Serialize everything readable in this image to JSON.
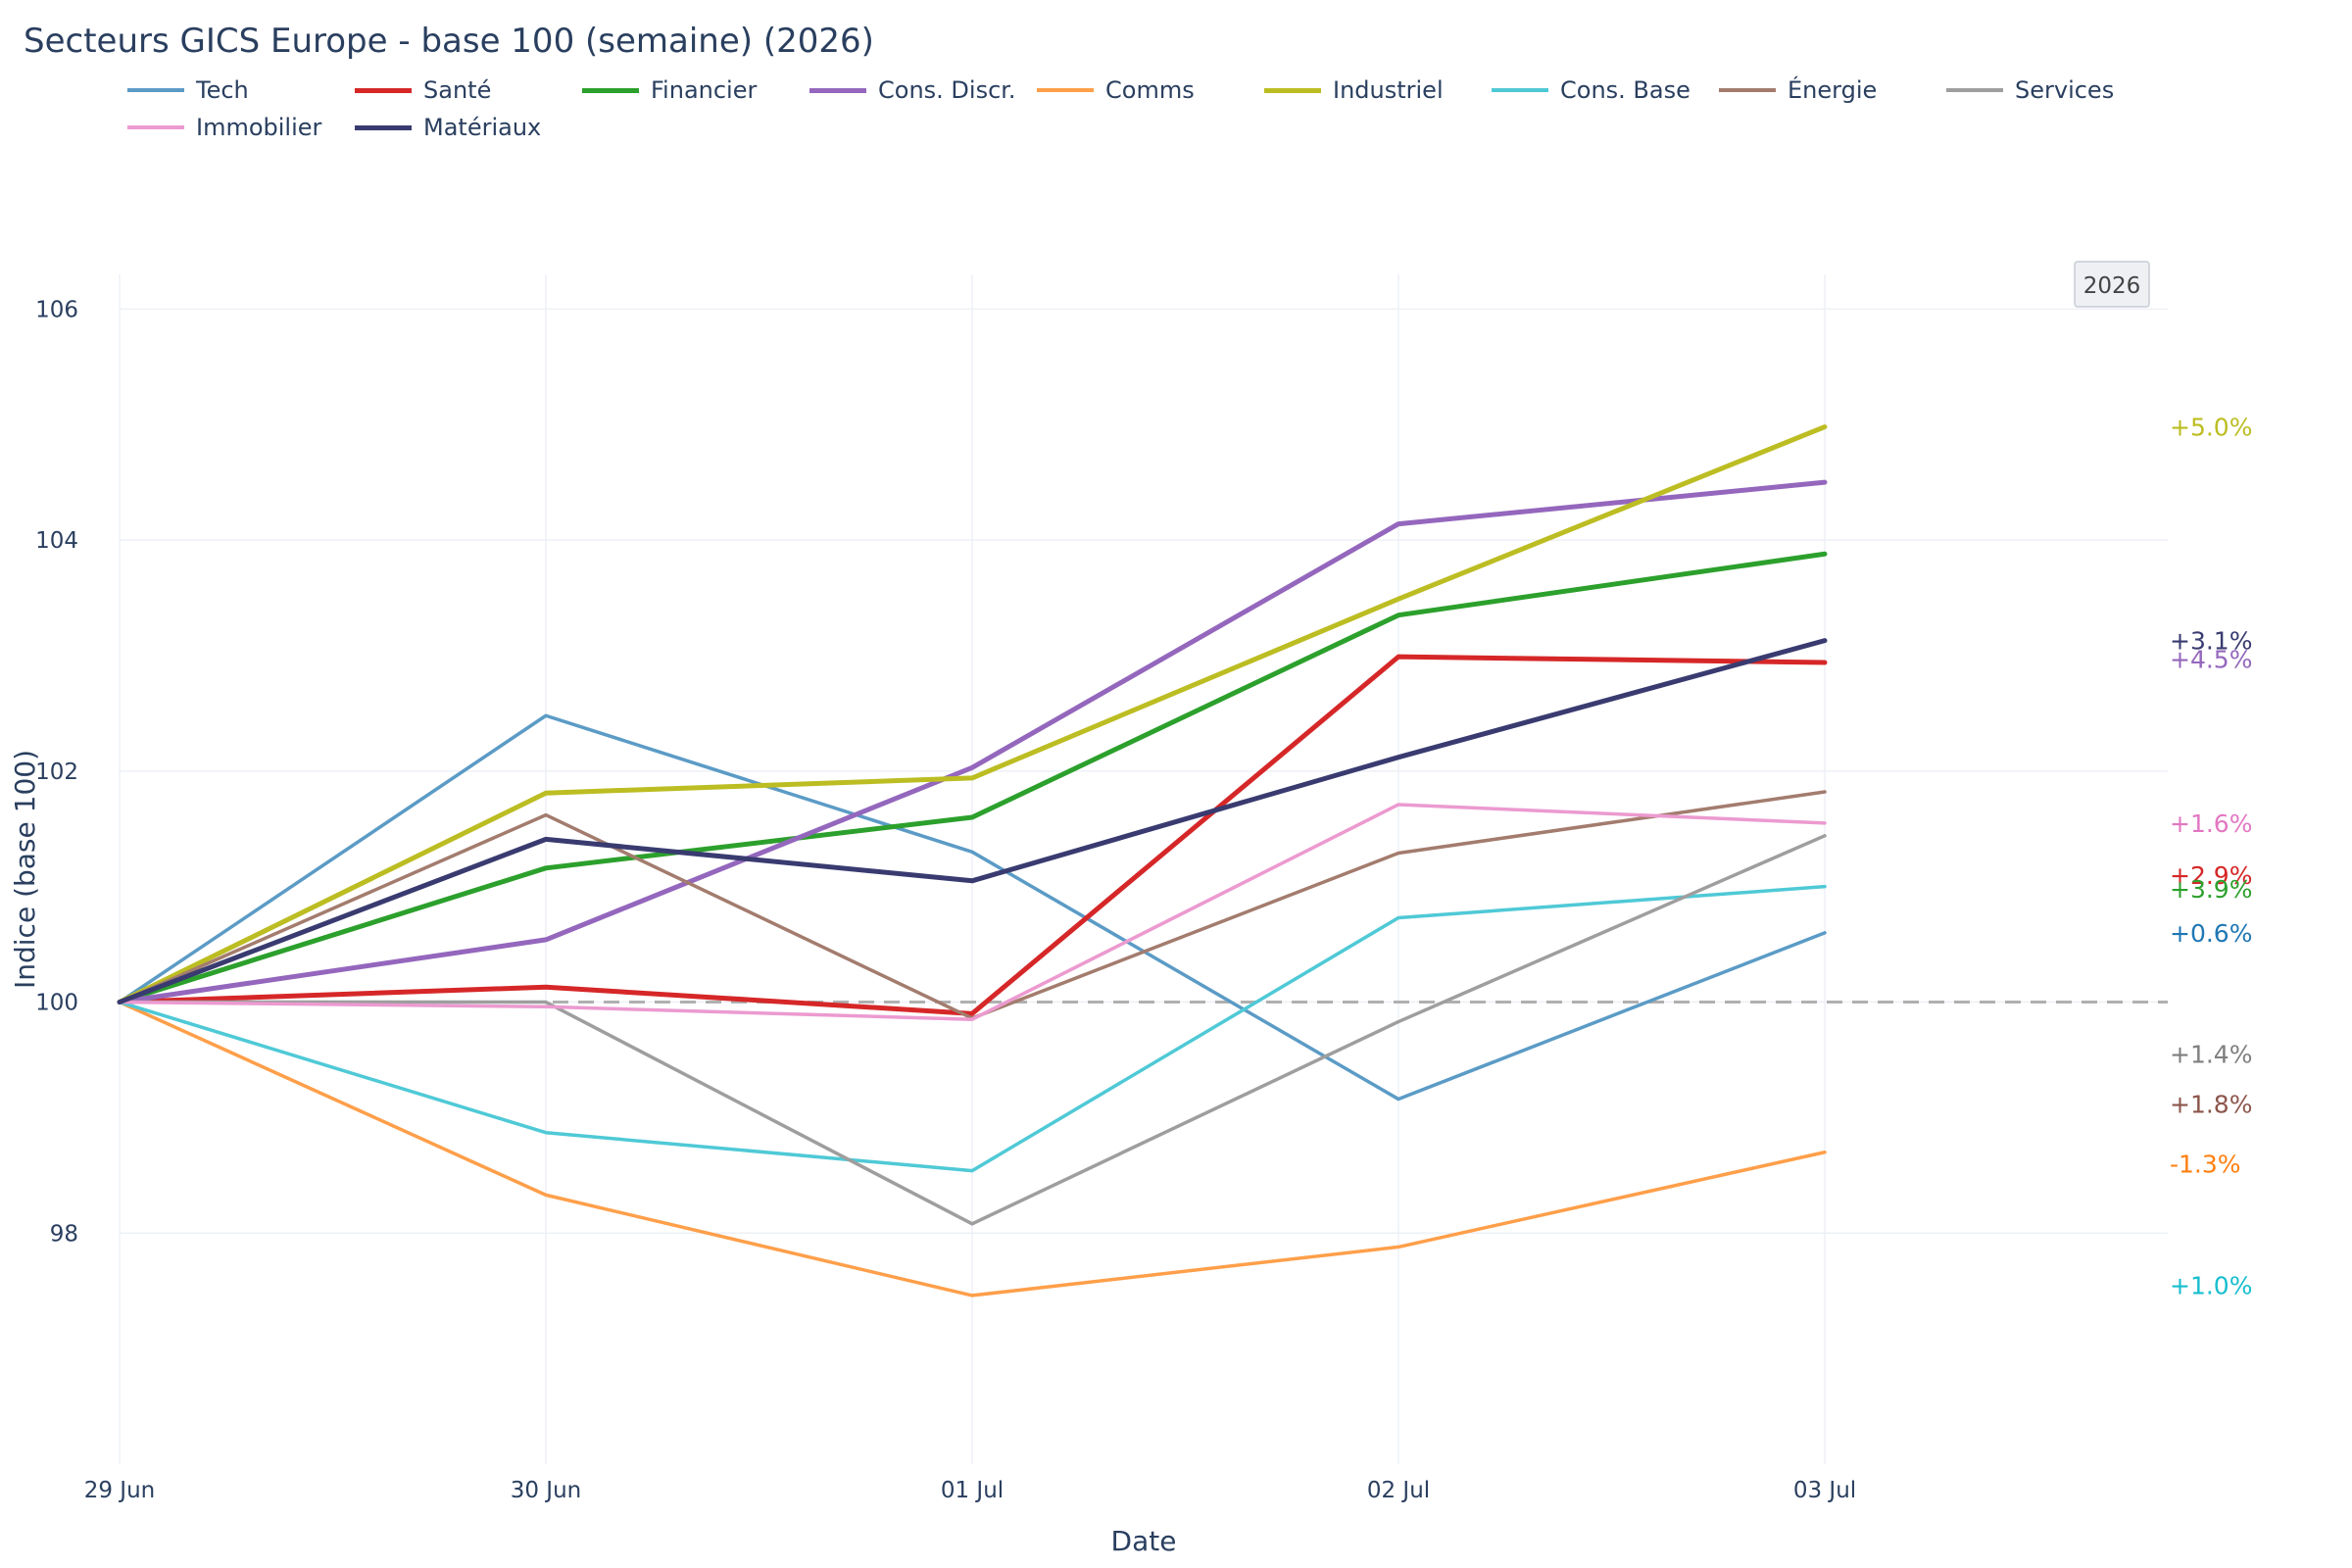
{
  "chart_data": {
    "type": "line",
    "title": "Secteurs GICS Europe - base 100 (semaine) (2026)",
    "xlabel": "Date",
    "ylabel": "Indice (base 100)",
    "x": [
      "29 Jun",
      "30 Jun",
      "01 Jul",
      "02 Jul",
      "03 Jul"
    ],
    "ylim": [
      96.0,
      106.3
    ],
    "yticks": [
      98,
      100,
      102,
      104,
      106
    ],
    "grid": true,
    "legend_position": "top-left",
    "year_badge": "2026",
    "baseline": 100,
    "series": [
      {
        "name": "Tech",
        "color": "#5b9bc6",
        "width": "thin",
        "values": [
          100,
          102.48,
          101.3,
          99.16,
          100.6
        ],
        "end_label": "+0.6%",
        "end_label_color": "#1f77b4",
        "end_label_y": 100.6
      },
      {
        "name": "Santé",
        "color": "#d62728",
        "width": "thick",
        "values": [
          100,
          100.13,
          99.9,
          102.99,
          102.94
        ],
        "end_label": "+2.9%",
        "end_label_color": "#d62728",
        "end_label_y": 101.1
      },
      {
        "name": "Financier",
        "color": "#2ca02c",
        "width": "thick",
        "values": [
          100,
          101.16,
          101.6,
          103.35,
          103.88
        ],
        "end_label": "+3.9%",
        "end_label_color": "#2ca02c",
        "end_label_y": 100.98
      },
      {
        "name": "Cons. Discr.",
        "color": "#9467bd",
        "width": "thick",
        "values": [
          100,
          100.54,
          102.03,
          104.14,
          104.5
        ],
        "end_label": "+4.5%",
        "end_label_color": "#9467bd",
        "end_label_y": 102.97
      },
      {
        "name": "Comms",
        "color": "#ff9f4a",
        "width": "thin",
        "values": [
          100,
          98.33,
          97.46,
          97.88,
          98.7
        ],
        "end_label": "-1.3%",
        "end_label_color": "#ff7f0e",
        "end_label_y": 98.6
      },
      {
        "name": "Industriel",
        "color": "#bcbd22",
        "width": "thick",
        "values": [
          100,
          101.81,
          101.94,
          103.49,
          104.98
        ],
        "end_label": "+5.0%",
        "end_label_color": "#bcbd22",
        "end_label_y": 104.98
      },
      {
        "name": "Cons. Base",
        "color": "#4fc9d6",
        "width": "thin",
        "values": [
          100,
          98.87,
          98.54,
          100.73,
          101.0
        ],
        "end_label": "+1.0%",
        "end_label_color": "#17becf",
        "end_label_y": 97.55
      },
      {
        "name": "Énergie",
        "color": "#a37c6e",
        "width": "thin",
        "values": [
          100,
          101.62,
          99.86,
          101.29,
          101.82
        ],
        "end_label": "+1.8%",
        "end_label_color": "#8c564b",
        "end_label_y": 99.12
      },
      {
        "name": "Services",
        "color": "#9e9e9e",
        "width": "thin",
        "values": [
          100,
          100.0,
          98.08,
          99.83,
          101.44
        ],
        "end_label": "+1.4%",
        "end_label_color": "#7f7f7f",
        "end_label_y": 99.55
      },
      {
        "name": "Immobilier",
        "color": "#ec9ad0",
        "width": "thin",
        "values": [
          100,
          99.96,
          99.85,
          101.71,
          101.55
        ],
        "end_label": "+1.6%",
        "end_label_color": "#e377c2",
        "end_label_y": 101.55
      },
      {
        "name": "Matériaux",
        "color": "#393b70",
        "width": "thick",
        "values": [
          100,
          101.41,
          101.05,
          102.12,
          103.13
        ],
        "end_label": "+3.1%",
        "end_label_color": "#393b70",
        "end_label_y": 103.13
      }
    ]
  }
}
